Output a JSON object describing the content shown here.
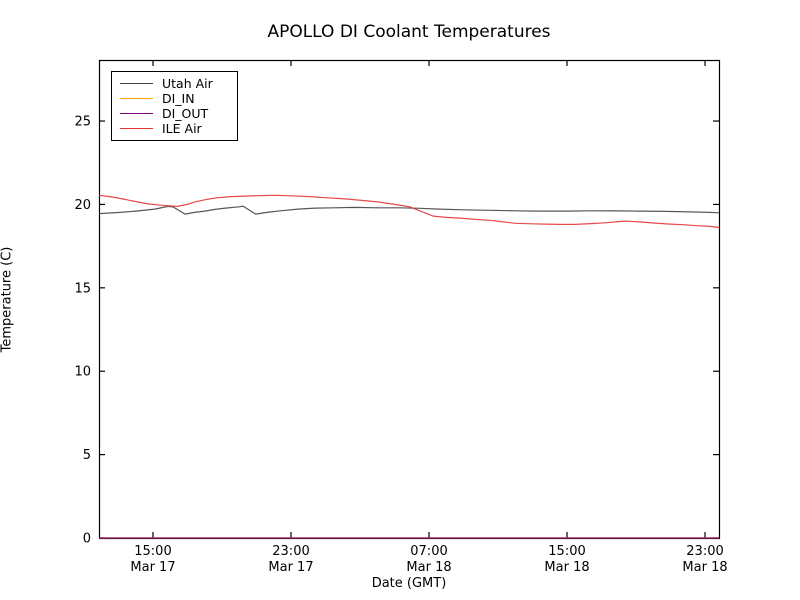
{
  "title": "APOLLO DI Coolant Temperatures",
  "colors": {
    "axis": "#000000",
    "utah_air": "#444444",
    "di_in": "#ffa500",
    "di_out": "#800080",
    "ile_air": "#e53535",
    "background": "#ffffff"
  },
  "chart_data": {
    "type": "line",
    "title": "APOLLO DI Coolant Temperatures",
    "xlabel": "Date (GMT)",
    "ylabel": "Temperature (C)",
    "x_unit": "hours since Mar 17 15:00 GMT",
    "xlim": [
      -3.13,
      32.81
    ],
    "ylim": [
      0,
      28.66
    ],
    "yticks": [
      0,
      5,
      10,
      15,
      20,
      25
    ],
    "xticks": [
      {
        "h": 0,
        "time": "15:00",
        "date": "Mar 17"
      },
      {
        "h": 8,
        "time": "23:00",
        "date": "Mar 17"
      },
      {
        "h": 16,
        "time": "07:00",
        "date": "Mar 18"
      },
      {
        "h": 24,
        "time": "15:00",
        "date": "Mar 18"
      },
      {
        "h": 32,
        "time": "23:00",
        "date": "Mar 18"
      }
    ],
    "grid": false,
    "legend_position": "upper left",
    "series": [
      {
        "name": "Utah Air",
        "color": "#444444",
        "points": [
          [
            -3.13,
            19.45
          ],
          [
            -1.9,
            19.52
          ],
          [
            -1.0,
            19.6
          ],
          [
            0.1,
            19.72
          ],
          [
            0.6,
            19.82
          ],
          [
            0.87,
            19.88
          ],
          [
            1.16,
            19.85
          ],
          [
            1.86,
            19.42
          ],
          [
            2.4,
            19.52
          ],
          [
            3.0,
            19.6
          ],
          [
            3.6,
            19.7
          ],
          [
            4.2,
            19.78
          ],
          [
            5.0,
            19.86
          ],
          [
            5.22,
            19.9
          ],
          [
            5.95,
            19.42
          ],
          [
            6.6,
            19.52
          ],
          [
            7.4,
            19.62
          ],
          [
            8.4,
            19.72
          ],
          [
            9.4,
            19.78
          ],
          [
            10.5,
            19.8
          ],
          [
            11.7,
            19.82
          ],
          [
            13.0,
            19.8
          ],
          [
            14.3,
            19.8
          ],
          [
            15.5,
            19.77
          ],
          [
            16.6,
            19.72
          ],
          [
            18.0,
            19.68
          ],
          [
            19.5,
            19.65
          ],
          [
            21.0,
            19.62
          ],
          [
            22.4,
            19.6
          ],
          [
            24.0,
            19.6
          ],
          [
            25.3,
            19.62
          ],
          [
            26.8,
            19.61
          ],
          [
            28.2,
            19.6
          ],
          [
            29.7,
            19.58
          ],
          [
            31.1,
            19.55
          ],
          [
            32.3,
            19.52
          ],
          [
            32.81,
            19.5
          ]
        ]
      },
      {
        "name": "DI_IN",
        "color": "#ffa500",
        "points": [
          [
            -3.13,
            0
          ],
          [
            32.81,
            0
          ]
        ]
      },
      {
        "name": "DI_OUT",
        "color": "#800080",
        "points": [
          [
            -3.13,
            0
          ],
          [
            32.81,
            0
          ]
        ]
      },
      {
        "name": "ILE Air",
        "color": "#e53535",
        "points": [
          [
            -3.13,
            20.55
          ],
          [
            -2.4,
            20.45
          ],
          [
            -1.62,
            20.3
          ],
          [
            -0.9,
            20.15
          ],
          [
            -0.29,
            20.03
          ],
          [
            0.52,
            19.95
          ],
          [
            1.39,
            19.88
          ],
          [
            2.0,
            20.0
          ],
          [
            2.43,
            20.15
          ],
          [
            3.1,
            20.3
          ],
          [
            3.71,
            20.4
          ],
          [
            4.5,
            20.47
          ],
          [
            5.33,
            20.5
          ],
          [
            6.2,
            20.53
          ],
          [
            7.07,
            20.55
          ],
          [
            8.0,
            20.52
          ],
          [
            9.1,
            20.47
          ],
          [
            10.1,
            20.4
          ],
          [
            11.13,
            20.33
          ],
          [
            12.1,
            20.24
          ],
          [
            13.04,
            20.15
          ],
          [
            14.0,
            20.0
          ],
          [
            14.9,
            19.85
          ],
          [
            15.5,
            19.6
          ],
          [
            16.23,
            19.3
          ],
          [
            17.0,
            19.22
          ],
          [
            17.8,
            19.18
          ],
          [
            18.7,
            19.1
          ],
          [
            19.54,
            19.05
          ],
          [
            20.3,
            18.95
          ],
          [
            21.0,
            18.87
          ],
          [
            22.0,
            18.84
          ],
          [
            22.72,
            18.82
          ],
          [
            23.6,
            18.8
          ],
          [
            24.46,
            18.8
          ],
          [
            25.4,
            18.85
          ],
          [
            26.2,
            18.9
          ],
          [
            27.0,
            18.97
          ],
          [
            27.36,
            19.0
          ],
          [
            28.2,
            18.95
          ],
          [
            29.1,
            18.88
          ],
          [
            30.0,
            18.82
          ],
          [
            30.84,
            18.78
          ],
          [
            31.6,
            18.72
          ],
          [
            32.29,
            18.68
          ],
          [
            32.81,
            18.62
          ]
        ]
      }
    ]
  },
  "layout_note": "single line chart, legend upper-left inside axes, ticks pointing inward on all four spines"
}
